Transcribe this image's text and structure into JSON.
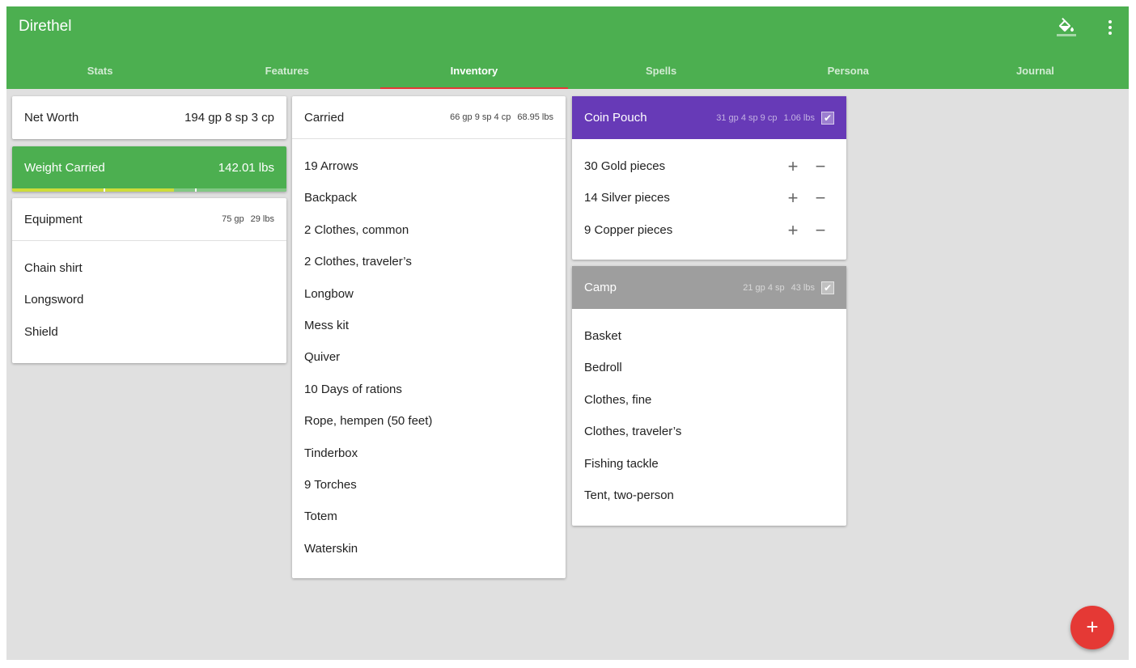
{
  "app": {
    "title": "Direthel",
    "icons": {
      "paint": "format-color-fill-icon",
      "menu": "more-vert-icon"
    }
  },
  "tabs": [
    {
      "label": "Stats"
    },
    {
      "label": "Features"
    },
    {
      "label": "Inventory",
      "active": true
    },
    {
      "label": "Spells"
    },
    {
      "label": "Persona"
    },
    {
      "label": "Journal"
    }
  ],
  "net_worth": {
    "label": "Net Worth",
    "value": "194 gp 8 sp 3 cp"
  },
  "weight": {
    "label": "Weight Carried",
    "value": "142.01 lbs",
    "fill_fraction": 0.59,
    "color": "#4caf50",
    "fill_color": "#cddc39"
  },
  "equipment": {
    "title": "Equipment",
    "cost": "75 gp",
    "weight": "29 lbs",
    "items": [
      "Chain shirt",
      "Longsword",
      "Shield"
    ]
  },
  "carried": {
    "title": "Carried",
    "cost": "66 gp 9 sp 4 cp",
    "weight": "68.95 lbs",
    "items": [
      "19 Arrows",
      "Backpack",
      "2 Clothes, common",
      "2 Clothes, traveler’s",
      "Longbow",
      "Mess kit",
      "Quiver",
      "10 Days of rations",
      "Rope, hempen (50 feet)",
      "Tinderbox",
      "9 Torches",
      "Totem",
      "Waterskin"
    ]
  },
  "coin_pouch": {
    "title": "Coin Pouch",
    "cost": "31 gp 4 sp 9 cp",
    "weight": "1.06 lbs",
    "checked": true,
    "color": "#673ab7",
    "items": [
      "30 Gold pieces",
      "14 Silver pieces",
      "9 Copper pieces"
    ]
  },
  "camp": {
    "title": "Camp",
    "cost": "21 gp 4 sp",
    "weight": "43 lbs",
    "checked": true,
    "color": "#9e9e9e",
    "items": [
      "Basket",
      "Bedroll",
      "Clothes, fine",
      "Clothes, traveler’s",
      "Fishing tackle",
      "Tent, two-person"
    ]
  },
  "fab": {
    "label": "+"
  }
}
